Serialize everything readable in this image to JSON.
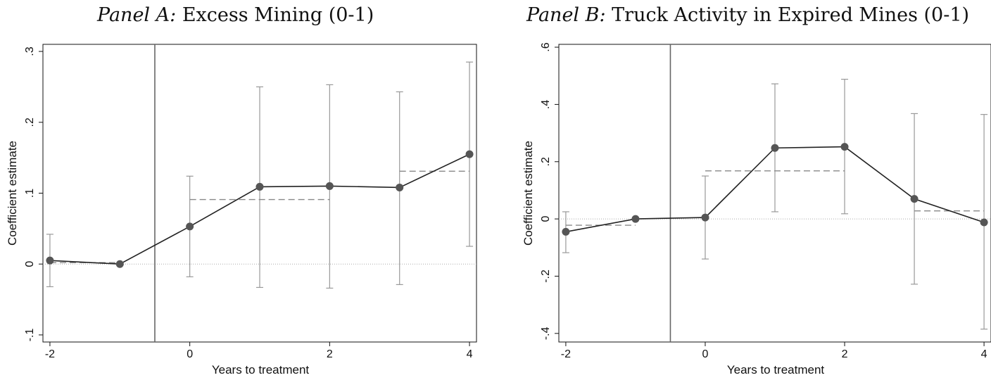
{
  "chart_data": [
    {
      "type": "line",
      "panel_label": "Panel A:",
      "panel_title": "Excess Mining (0-1)",
      "xlabel": "Years to treatment",
      "ylabel": "Coefficient estimate",
      "x_ticks": [
        "-2",
        "0",
        "2",
        "4"
      ],
      "y_ticks": [
        "-.1",
        "0",
        ".1",
        ".2",
        ".3"
      ],
      "xlim": [
        -2.1,
        4.1
      ],
      "ylim": [
        -0.11,
        0.31
      ],
      "treatment_line_x": -0.5,
      "zero_line": true,
      "series": [
        {
          "x": [
            -2,
            -1,
            0,
            1,
            2,
            3,
            4
          ],
          "y": [
            0.005,
            0.0,
            0.053,
            0.109,
            0.11,
            0.108,
            0.155
          ],
          "ci_low": [
            -0.032,
            null,
            -0.018,
            -0.033,
            -0.034,
            -0.029,
            0.025
          ],
          "ci_high": [
            0.042,
            null,
            0.124,
            0.25,
            0.253,
            0.243,
            0.285
          ]
        }
      ],
      "pooled_estimates": [
        {
          "x_start": -2,
          "x_end": -1,
          "y": 0.002
        },
        {
          "x_start": 0,
          "x_end": 2,
          "y": 0.091
        },
        {
          "x_start": 3,
          "x_end": 4,
          "y": 0.131
        }
      ]
    },
    {
      "type": "line",
      "panel_label": "Panel B:",
      "panel_title": "Truck Activity in Expired Mines (0-1)",
      "xlabel": "Years to treatment",
      "ylabel": "Coefficient estimate",
      "x_ticks": [
        "-2",
        "0",
        "2",
        "4"
      ],
      "y_ticks": [
        "-.4",
        "-.2",
        "0",
        ".2",
        ".4",
        ".6"
      ],
      "xlim": [
        -2.1,
        4.1
      ],
      "ylim": [
        -0.43,
        0.61
      ],
      "treatment_line_x": -0.5,
      "zero_line": true,
      "series": [
        {
          "x": [
            -2,
            -1,
            0,
            1,
            2,
            3,
            4
          ],
          "y": [
            -0.045,
            0.0,
            0.005,
            0.248,
            0.252,
            0.07,
            -0.012
          ],
          "ci_low": [
            -0.118,
            null,
            -0.14,
            0.025,
            0.018,
            -0.228,
            -0.385
          ],
          "ci_high": [
            0.025,
            null,
            0.15,
            0.472,
            0.488,
            0.368,
            0.365
          ]
        }
      ],
      "pooled_estimates": [
        {
          "x_start": -2,
          "x_end": -1,
          "y": -0.022
        },
        {
          "x_start": 0,
          "x_end": 2,
          "y": 0.168
        },
        {
          "x_start": 3,
          "x_end": 4,
          "y": 0.028
        }
      ]
    }
  ]
}
